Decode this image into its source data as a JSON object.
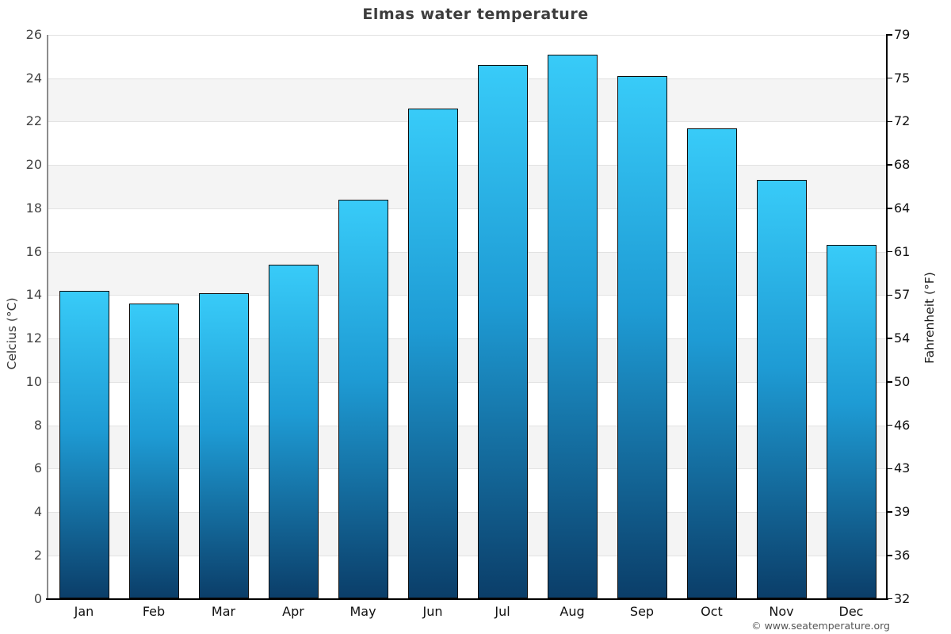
{
  "title": "Elmas water temperature",
  "footer": "© www.seatemperature.org",
  "chart_data": {
    "type": "bar",
    "title": "Elmas water temperature",
    "categories": [
      "Jan",
      "Feb",
      "Mar",
      "Apr",
      "May",
      "Jun",
      "Jul",
      "Aug",
      "Sep",
      "Oct",
      "Nov",
      "Dec"
    ],
    "values": [
      14.2,
      13.6,
      14.1,
      15.4,
      18.4,
      22.6,
      24.6,
      25.1,
      24.1,
      21.7,
      19.3,
      16.3
    ],
    "series_name": "Water temperature (°C)",
    "xlabel": "",
    "ylabel_left": "Celcius (°C)",
    "ylabel_right": "Fahrenheit (°F)",
    "ylim": [
      0,
      26
    ],
    "yticks_celsius": [
      26,
      24,
      22,
      20,
      18,
      16,
      14,
      12,
      10,
      8,
      6,
      4,
      2,
      0
    ],
    "yticks_fahrenheit": [
      "79",
      "75",
      "72",
      "68",
      "64",
      "61",
      "57",
      "54",
      "50",
      "46",
      "43",
      "39",
      "36",
      "32"
    ],
    "grid": "horizontal gridlines every 2°C with alternating white/gray bands",
    "legend": "none",
    "colors": {
      "bar_gradient_top": "#38cbf8",
      "bar_gradient_bottom": "#0b3e69",
      "bar_border": "#0c0c0c",
      "band_gray": "#f4f4f4",
      "band_white": "#ffffff",
      "gridline": "#e2e2e2",
      "axis_left": "#8c8c8c",
      "axis_bottom": "#000000",
      "axis_right": "#000000",
      "title_text": "#3d3d3d",
      "tick_left_text": "#444444",
      "tick_right_text": "#111111",
      "month_text": "#111111",
      "footer_text": "#555555"
    }
  }
}
